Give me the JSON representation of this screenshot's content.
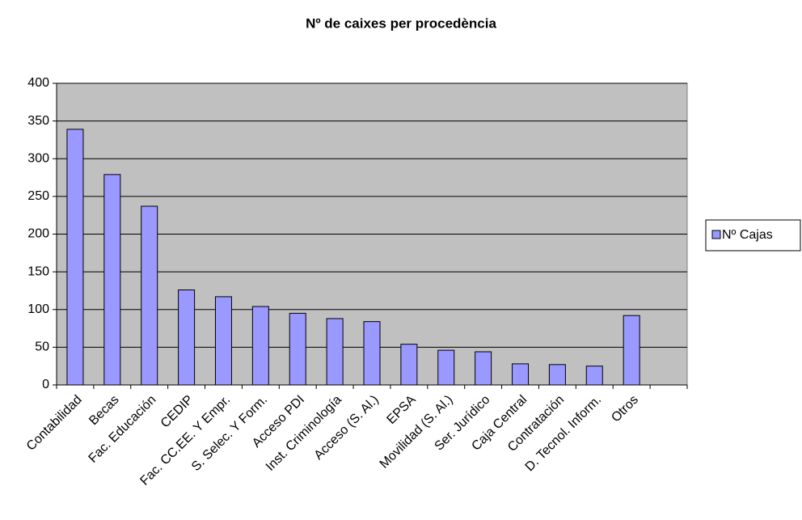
{
  "chart_data": {
    "type": "bar",
    "title": "Nº de caixes per procedència",
    "categories": [
      "Contabilidad",
      "Becas",
      "Fac. Educación",
      "CEDIP",
      "Fac. CC.EE. Y Empr.",
      "S. Selec. Y Form.",
      "Acceso PDI",
      "Inst. Criminología",
      "Acceso (S. Al.)",
      "EPSA",
      "Movilidad (S. Al.)",
      "Ser. Jurídico",
      "Caja Central",
      "Contratación",
      "D. Tecnol. Inform.",
      "Otros",
      null
    ],
    "series": [
      {
        "name": "Nº Cajas",
        "color": "#9999ff",
        "values": [
          339,
          279,
          237,
          126,
          117,
          104,
          95,
          88,
          84,
          54,
          46,
          44,
          28,
          27,
          25,
          92,
          null
        ]
      }
    ],
    "ylim": [
      0,
      400
    ],
    "yticks": [
      0,
      50,
      100,
      150,
      200,
      250,
      300,
      350,
      400
    ],
    "grid": true,
    "legend": "right"
  }
}
